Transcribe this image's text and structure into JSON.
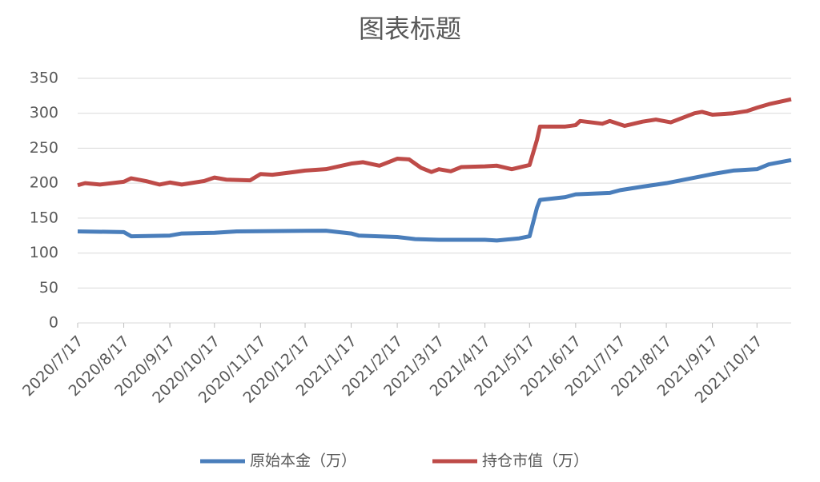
{
  "chart_data": {
    "type": "line",
    "title": "图表标题",
    "xlim": [
      "2020/7/17",
      "2021/11/9"
    ],
    "xticks": [
      "2020/7/17",
      "2020/8/17",
      "2020/9/17",
      "2020/10/17",
      "2020/11/17",
      "2020/12/17",
      "2021/1/17",
      "2021/2/17",
      "2021/3/17",
      "2021/4/17",
      "2021/5/17",
      "2021/6/17",
      "2021/7/17",
      "2021/8/17",
      "2021/9/17",
      "2021/10/17"
    ],
    "ylim": [
      0,
      350
    ],
    "yticks": [
      0,
      50,
      100,
      150,
      200,
      250,
      300,
      350
    ],
    "grid": true,
    "legend": "bottom",
    "series": [
      {
        "name": "原始本金（万）",
        "color": "#4a7ebb",
        "x": [
          "2020/7/17",
          "2020/8/17",
          "2020/8/22",
          "2020/9/17",
          "2020/9/25",
          "2020/10/17",
          "2020/11/1",
          "2020/12/31",
          "2021/1/17",
          "2021/1/22",
          "2021/2/17",
          "2021/3/1",
          "2021/3/17",
          "2021/4/17",
          "2021/4/25",
          "2021/5/10",
          "2021/5/17",
          "2021/5/22",
          "2021/5/24",
          "2021/6/10",
          "2021/6/17",
          "2021/7/10",
          "2021/7/17",
          "2021/8/1",
          "2021/8/17",
          "2021/9/10",
          "2021/9/17",
          "2021/10/1",
          "2021/10/17",
          "2021/10/25",
          "2021/11/9"
        ],
        "values": [
          131,
          130,
          124,
          125,
          128,
          129,
          131,
          132,
          128,
          125,
          123,
          120,
          119,
          119,
          118,
          121,
          124,
          165,
          176,
          180,
          184,
          186,
          190,
          195,
          200,
          210,
          213,
          218,
          220,
          227,
          233
        ]
      },
      {
        "name": "持仓市值（万）",
        "color": "#be4b48",
        "x": [
          "2020/7/17",
          "2020/7/22",
          "2020/8/1",
          "2020/8/17",
          "2020/8/22",
          "2020/9/1",
          "2020/9/10",
          "2020/9/17",
          "2020/9/25",
          "2020/10/10",
          "2020/10/17",
          "2020/10/25",
          "2020/11/10",
          "2020/11/17",
          "2020/11/25",
          "2020/12/10",
          "2020/12/17",
          "2020/12/31",
          "2021/1/17",
          "2021/1/25",
          "2021/2/5",
          "2021/2/17",
          "2021/2/25",
          "2021/3/5",
          "2021/3/12",
          "2021/3/17",
          "2021/3/25",
          "2021/4/1",
          "2021/4/17",
          "2021/4/25",
          "2021/5/5",
          "2021/5/17",
          "2021/5/22",
          "2021/5/24",
          "2021/6/10",
          "2021/6/17",
          "2021/6/20",
          "2021/7/5",
          "2021/7/10",
          "2021/7/20",
          "2021/8/1",
          "2021/8/10",
          "2021/8/20",
          "2021/9/5",
          "2021/9/10",
          "2021/9/17",
          "2021/10/1",
          "2021/10/10",
          "2021/10/17",
          "2021/10/25",
          "2021/11/9"
        ],
        "values": [
          197,
          200,
          198,
          202,
          207,
          203,
          198,
          201,
          198,
          203,
          208,
          205,
          204,
          213,
          212,
          216,
          218,
          220,
          228,
          230,
          225,
          235,
          234,
          222,
          216,
          220,
          217,
          223,
          224,
          225,
          220,
          226,
          262,
          281,
          281,
          283,
          289,
          285,
          289,
          282,
          288,
          291,
          287,
          300,
          302,
          298,
          300,
          303,
          308,
          313,
          320
        ]
      }
    ]
  }
}
